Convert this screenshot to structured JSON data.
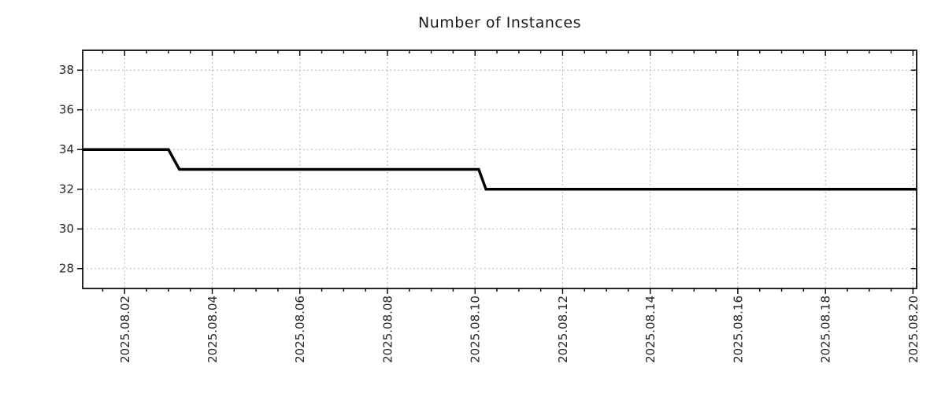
{
  "chart": {
    "title": "Number of Instances"
  },
  "colors": {
    "line": "#000000",
    "grid": "#b3b3b3",
    "axis": "#000000",
    "text": "#262626",
    "background": "#ffffff"
  },
  "chart_data": {
    "type": "line",
    "subtype": "step",
    "title": "Number of Instances",
    "xlabel": "",
    "ylabel": "",
    "grid": true,
    "legend_position": "none",
    "x_axis": {
      "kind": "date",
      "tick_labels": [
        "2025.08.02",
        "2025.08.04",
        "2025.08.06",
        "2025.08.08",
        "2025.08.10",
        "2025.08.12",
        "2025.08.14",
        "2025.08.16",
        "2025.08.18",
        "2025.08.20"
      ],
      "tick_days": [
        2,
        4,
        6,
        8,
        10,
        12,
        14,
        16,
        18,
        20
      ],
      "minor_tick_interval_days": 0.5,
      "xlim_days": [
        1.042,
        20.083
      ]
    },
    "y_axis": {
      "ticks": [
        28,
        30,
        32,
        34,
        36,
        38
      ],
      "ylim": [
        27,
        39
      ]
    },
    "series": [
      {
        "name": "Number of Instances",
        "color": "#000000",
        "points": [
          [
            "2025-08-01 01:00",
            34
          ],
          [
            "2025-08-03 00:00",
            34
          ],
          [
            "2025-08-03 06:00",
            33
          ],
          [
            "2025-08-10 02:00",
            33
          ],
          [
            "2025-08-10 06:00",
            32
          ],
          [
            "2025-08-20 02:00",
            32
          ]
        ]
      }
    ]
  }
}
